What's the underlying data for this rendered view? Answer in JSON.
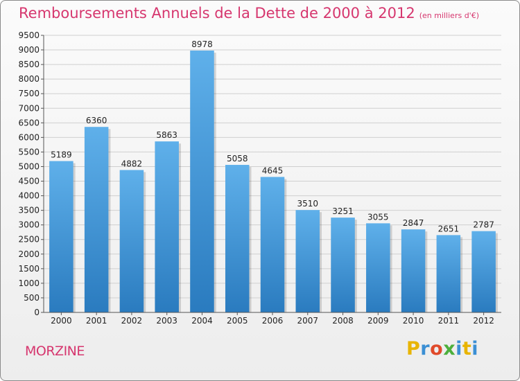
{
  "header": {
    "title": "Remboursements Annuels de la Dette de 2000 à 2012",
    "unit": "(en milliers d'€)"
  },
  "footer": {
    "commune": "MORZINE",
    "brand_letters": [
      "P",
      "r",
      "o",
      "x",
      "i",
      "t",
      "i"
    ],
    "brand_colors": [
      "#e8b400",
      "#3b8fd4",
      "#e04a2a",
      "#4caf3c",
      "#3b8fd4",
      "#e8b400",
      "#3b8fd4"
    ]
  },
  "colors": {
    "title": "#d6366e",
    "bar_top": "#5fb0ea",
    "bar_bottom": "#2a7bbf",
    "grid": "#cfcfcf",
    "axis": "#555555"
  },
  "chart_data": {
    "type": "bar",
    "title": "Remboursements Annuels de la Dette de 2000 à 2012",
    "subtitle": "(en milliers d'€)",
    "categories": [
      "2000",
      "2001",
      "2002",
      "2003",
      "2004",
      "2005",
      "2006",
      "2007",
      "2008",
      "2009",
      "2010",
      "2011",
      "2012"
    ],
    "values": [
      5189,
      6360,
      4882,
      5863,
      8978,
      5058,
      4645,
      3510,
      3251,
      3055,
      2847,
      2651,
      2787
    ],
    "ylim": [
      0,
      9500
    ],
    "ytick_step": 500,
    "grid": true,
    "legend": "none"
  }
}
